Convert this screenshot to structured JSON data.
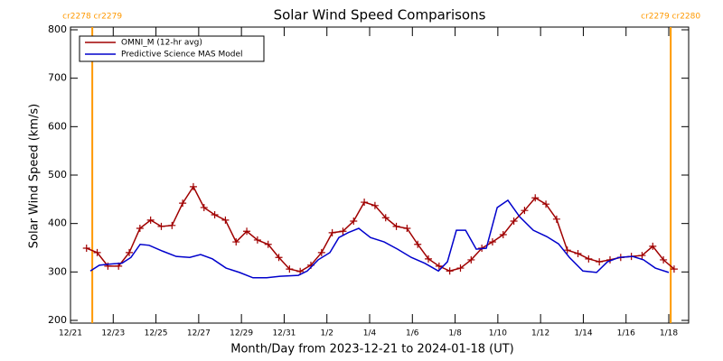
{
  "chart_data": {
    "type": "line",
    "title": "Solar Wind Speed Comparisons",
    "xlabel": "Month/Day from 2023-12-21 to 2024-01-18 (UT)",
    "ylabel": "Solar Wind Speed (km/s)",
    "xlim": [
      0,
      28.93
    ],
    "ylim": [
      200,
      800
    ],
    "xticks": [
      {
        "value": 0,
        "label": "12/21"
      },
      {
        "value": 2,
        "label": "12/23"
      },
      {
        "value": 4,
        "label": "12/25"
      },
      {
        "value": 6,
        "label": "12/27"
      },
      {
        "value": 8,
        "label": "12/29"
      },
      {
        "value": 10,
        "label": "12/31"
      },
      {
        "value": 12,
        "label": "1/2"
      },
      {
        "value": 14,
        "label": "1/4"
      },
      {
        "value": 16,
        "label": "1/6"
      },
      {
        "value": 18,
        "label": "1/8"
      },
      {
        "value": 20,
        "label": "1/10"
      },
      {
        "value": 22,
        "label": "1/12"
      },
      {
        "value": 24,
        "label": "1/14"
      },
      {
        "value": 26,
        "label": "1/16"
      },
      {
        "value": 28,
        "label": "1/18"
      }
    ],
    "yticks": [
      200,
      300,
      400,
      500,
      600,
      700,
      800
    ],
    "legend": "upper left",
    "markers": [
      {
        "x": 1.02,
        "label": "cr2278 cr2279",
        "color": "#ff9900"
      },
      {
        "x": 28.09,
        "label": "cr2279 cr2280",
        "color": "#ff9900"
      }
    ],
    "series": [
      {
        "name": "OMNI_M (12-hr avg)",
        "color": "#a00000",
        "marker": "+",
        "x": [
          0.75,
          1.25,
          1.75,
          2.25,
          2.75,
          3.25,
          3.75,
          4.25,
          4.75,
          5.25,
          5.75,
          6.25,
          6.75,
          7.25,
          7.75,
          8.25,
          8.75,
          9.25,
          9.75,
          10.25,
          10.75,
          11.25,
          11.75,
          12.25,
          12.75,
          13.25,
          13.75,
          14.25,
          14.75,
          15.25,
          15.75,
          16.25,
          16.75,
          17.25,
          17.75,
          18.25,
          18.75,
          19.25,
          19.75,
          20.25,
          20.75,
          21.25,
          21.75,
          22.25,
          22.75,
          23.25,
          23.75,
          24.25,
          24.75,
          25.25,
          25.75,
          26.25,
          26.75,
          27.25,
          27.75,
          28.25
        ],
        "values": [
          349,
          340,
          312,
          312,
          340,
          390,
          407,
          394,
          396,
          442,
          476,
          433,
          418,
          407,
          362,
          384,
          366,
          357,
          330,
          306,
          301,
          314,
          340,
          381,
          384,
          405,
          444,
          437,
          412,
          394,
          390,
          357,
          327,
          312,
          302,
          308,
          325,
          349,
          362,
          377,
          405,
          427,
          453,
          440,
          409,
          345,
          338,
          327,
          321,
          325,
          330,
          332,
          334,
          353,
          325,
          306
        ]
      },
      {
        "name": "Predictive Science MAS Model",
        "color": "#0000cc",
        "x": [
          0.93,
          1.35,
          1.78,
          2.41,
          2.83,
          3.26,
          3.68,
          4.31,
          4.95,
          5.58,
          6.09,
          6.64,
          7.28,
          7.91,
          8.54,
          9.18,
          9.81,
          10.66,
          11.08,
          11.59,
          12.14,
          12.56,
          12.99,
          13.49,
          14.04,
          14.68,
          15.31,
          15.95,
          16.58,
          17.22,
          17.64,
          18.06,
          18.49,
          18.99,
          19.46,
          19.97,
          20.47,
          21.02,
          21.66,
          22.29,
          22.84,
          23.35,
          23.98,
          24.62,
          25.13,
          25.68,
          26.31,
          26.82,
          27.37,
          28.0
        ],
        "values": [
          302,
          314,
          316,
          318,
          330,
          357,
          355,
          343,
          332,
          330,
          336,
          327,
          308,
          299,
          288,
          288,
          291,
          293,
          302,
          325,
          340,
          371,
          381,
          390,
          371,
          362,
          347,
          330,
          318,
          302,
          321,
          386,
          386,
          347,
          349,
          433,
          448,
          414,
          386,
          373,
          358,
          330,
          302,
          299,
          321,
          330,
          332,
          325,
          308,
          299
        ]
      }
    ]
  }
}
